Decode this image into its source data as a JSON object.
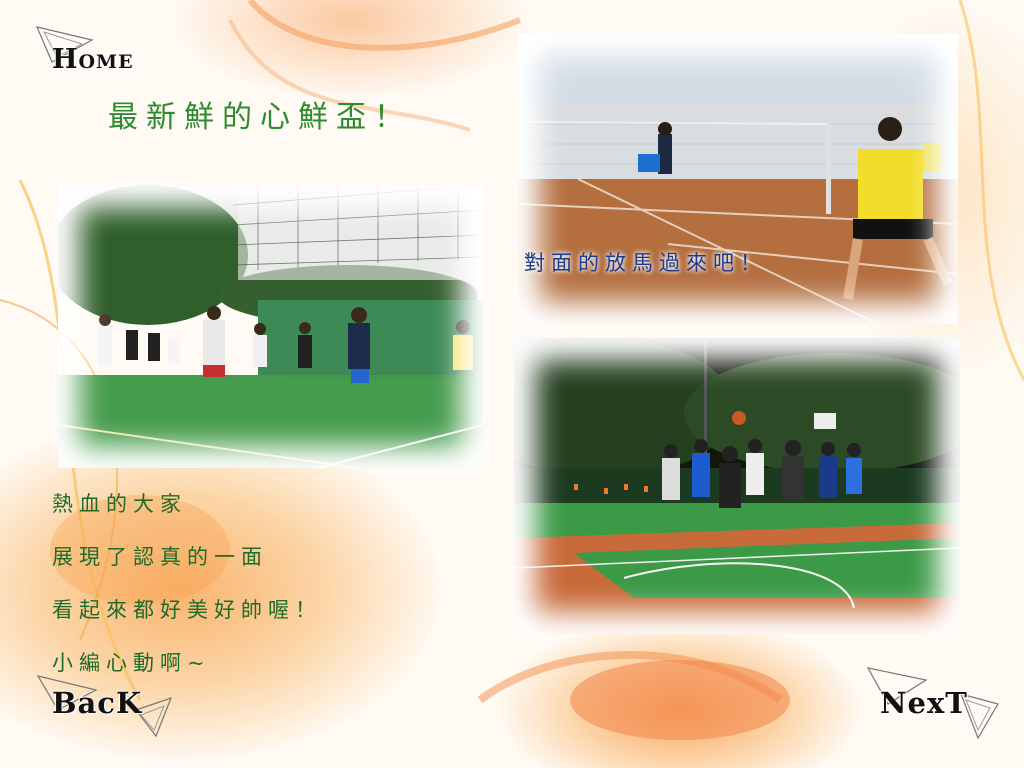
{
  "nav": {
    "home": "Home",
    "back": "BacK",
    "next": "NexT"
  },
  "title": "最新鮮的心鮮盃！",
  "photos": {
    "volleyball": {
      "subject": "volleyball-court-photo"
    },
    "badminton": {
      "subject": "badminton-court-photo",
      "caption": "對面的放馬過來吧！"
    },
    "basketball": {
      "subject": "basketball-court-photo"
    }
  },
  "body_lines": [
    "熱血的大家",
    "展現了認真的一面",
    "看起來都好美好帥喔！",
    "小編心動啊~"
  ],
  "colors": {
    "title": "#2e8b2e",
    "body_text": "#1f6b2a",
    "caption": "#1d3d8c",
    "accent_orange": "#f59a4a"
  }
}
